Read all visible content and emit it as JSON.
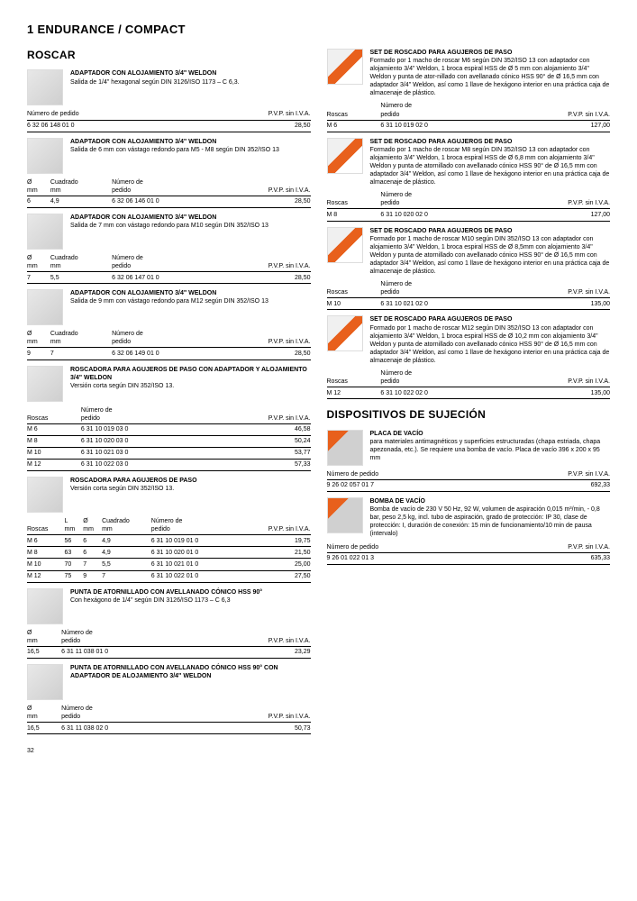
{
  "page_title": "1   ENDURANCE / COMPACT",
  "page_number": "32",
  "left": {
    "section_title": "ROSCAR",
    "products": [
      {
        "title": "ADAPTADOR CON ALOJAMIENTO 3/4\" WELDON",
        "desc": "Salida de 1/4\" hexagonal según DIN 3126/ISO 1173 – C 6,3.",
        "table": {
          "headers": [
            "Número de pedido",
            "P.V.P. sin I.V.A."
          ],
          "rows": [
            [
              "6 32 06 148 01 0",
              "28,50"
            ]
          ]
        }
      },
      {
        "title": "ADAPTADOR CON ALOJAMIENTO 3/4\" WELDON",
        "desc": "Salida de 6 mm con vástago redondo para M5 - M8 según DIN 352/ISO 13",
        "table": {
          "headers": [
            "Ø\nmm",
            "Cuadrado\nmm",
            "Número de\npedido",
            "P.V.P. sin I.V.A."
          ],
          "rows": [
            [
              "6",
              "4,9",
              "6 32 06 146 01 0",
              "28,50"
            ]
          ]
        }
      },
      {
        "title": "ADAPTADOR CON ALOJAMIENTO 3/4\" WELDON",
        "desc": "Salida de 7 mm con vástago redondo para M10 según DIN 352/ISO 13",
        "table": {
          "headers": [
            "Ø\nmm",
            "Cuadrado\nmm",
            "Número de\npedido",
            "P.V.P. sin I.V.A."
          ],
          "rows": [
            [
              "7",
              "5,5",
              "6 32 06 147 01 0",
              "28,50"
            ]
          ]
        }
      },
      {
        "title": "ADAPTADOR CON ALOJAMIENTO 3/4\" WELDON",
        "desc": "Salida de 9 mm con vástago redondo para M12 según DIN 352/ISO 13",
        "table": {
          "headers": [
            "Ø\nmm",
            "Cuadrado\nmm",
            "Número de\npedido",
            "P.V.P. sin I.V.A."
          ],
          "rows": [
            [
              "9",
              "7",
              "6 32 06 149 01 0",
              "28,50"
            ]
          ]
        }
      },
      {
        "title": "ROSCADORA PARA AGUJEROS DE PASO CON ADAPTADOR Y ALOJAMIENTO 3/4\" WELDON",
        "desc": "Versión corta según DIN 352/ISO 13.",
        "table": {
          "headers": [
            "Roscas",
            "Número de\npedido",
            "P.V.P. sin I.V.A."
          ],
          "rows": [
            [
              "M 6",
              "6 31 10 019 03 0",
              "46,58"
            ],
            [
              "M 8",
              "6 31 10 020 03 0",
              "50,24"
            ],
            [
              "M 10",
              "6 31 10 021 03 0",
              "53,77"
            ],
            [
              "M 12",
              "6 31 10 022 03 0",
              "57,33"
            ]
          ]
        }
      },
      {
        "title": "ROSCADORA PARA AGUJEROS DE PASO",
        "desc": "Versión corta según DIN 352/ISO 13.",
        "table": {
          "headers": [
            "Roscas",
            "L\nmm",
            "Ø\nmm",
            "Cuadrado\nmm",
            "Número de\npedido",
            "P.V.P. sin I.V.A."
          ],
          "rows": [
            [
              "M 6",
              "56",
              "6",
              "4,9",
              "6 31 10 019 01 0",
              "19,75"
            ],
            [
              "M 8",
              "63",
              "6",
              "4,9",
              "6 31 10 020 01 0",
              "21,50"
            ],
            [
              "M 10",
              "70",
              "7",
              "5,5",
              "6 31 10 021 01 0",
              "25,00"
            ],
            [
              "M 12",
              "75",
              "9",
              "7",
              "6 31 10 022 01 0",
              "27,50"
            ]
          ]
        }
      },
      {
        "title": "PUNTA DE ATORNILLADO CON AVELLANADO CÓNICO HSS 90°",
        "desc": "Con hexágono de 1/4\" según DIN 3126/ISO 1173 – C 6,3",
        "table": {
          "headers": [
            "Ø\nmm",
            "Número de\npedido",
            "P.V.P. sin I.V.A."
          ],
          "rows": [
            [
              "16,5",
              "6 31 11 038 01 0",
              "23,29"
            ]
          ]
        }
      },
      {
        "title": "PUNTA DE ATORNILLADO CON AVELLANADO CÓNICO HSS 90° CON ADAPTADOR DE ALOJAMIENTO 3/4\" WELDON",
        "desc": "",
        "table": {
          "headers": [
            "Ø\nmm",
            "Número de\npedido",
            "P.V.P. sin I.V.A."
          ],
          "rows": [
            [
              "16,5",
              "6 31 11 038 02 0",
              "50,73"
            ]
          ]
        }
      }
    ]
  },
  "right": {
    "products": [
      {
        "title": "SET DE ROSCADO PARA AGUJEROS DE PASO",
        "desc": "Formado por 1 macho de roscar M6 según DIN 352/ISO 13 con adaptador con alojamiento 3/4\" Weldon, 1 broca espiral HSS de Ø 5 mm con alojamiento 3/4\" Weldon y punta de ator-nillado con avellanado cónico HSS 90° de Ø 16,5 mm con adaptador 3/4\" Weldon, así como 1 llave de hexágono interior en una práctica caja de almacenaje de plástico.",
        "thumb": "orange",
        "table": {
          "headers": [
            "Roscas",
            "Número de\npedido",
            "P.V.P. sin I.V.A."
          ],
          "rows": [
            [
              "M 6",
              "6 31 10 019 02 0",
              "127,00"
            ]
          ]
        }
      },
      {
        "title": "SET DE ROSCADO PARA AGUJEROS DE PASO",
        "desc": "Formado por 1 macho de roscar M8 según DIN 352/ISO 13 con adaptador con alojamiento 3/4\" Weldon, 1 broca espiral HSS de Ø 6,8 mm con alojamiento 3/4\" Weldon y punta de atornillado con avellanado cónico HSS 90° de Ø 16,5 mm con adaptador 3/4\" Weldon, así como 1 llave de hexágono interior en una práctica caja de almacenaje de plástico.",
        "thumb": "orange",
        "table": {
          "headers": [
            "Roscas",
            "Número de\npedido",
            "P.V.P. sin I.V.A."
          ],
          "rows": [
            [
              "M 8",
              "6 31 10 020 02 0",
              "127,00"
            ]
          ]
        }
      },
      {
        "title": "SET DE ROSCADO PARA AGUJEROS DE PASO",
        "desc": "Formado por 1 macho de roscar M10 según DIN 352/ISO 13 con adaptador con alojamiento 3/4\" Weldon, 1 broca espiral HSS de Ø 8,5mm con alojamiento 3/4\" Weldon y punta de atornillado con avellanado cónico HSS 90° de Ø 16,5 mm con adaptador 3/4\" Weldon, así como 1 llave de hexágono interior en una práctica caja de almacenaje de plástico.",
        "thumb": "orange",
        "table": {
          "headers": [
            "Roscas",
            "Número de\npedido",
            "P.V.P. sin I.V.A."
          ],
          "rows": [
            [
              "M 10",
              "6 31 10 021 02 0",
              "135,00"
            ]
          ]
        }
      },
      {
        "title": "SET DE ROSCADO PARA AGUJEROS DE PASO",
        "desc": "Formado por 1 macho de roscar M12 según DIN 352/ISO 13 con adaptador con alojamiento 3/4\" Weldon, 1 broca espiral HSS de Ø 10,2 mm con alojamiento 3/4\" Weldon y punta de atornillado con avellanado cónico HSS 90° de Ø 16,5 mm con adaptador 3/4\" Weldon, así como 1 llave de hexágono interior en una práctica caja de almacenaje de plástico.",
        "thumb": "orange",
        "table": {
          "headers": [
            "Roscas",
            "Número de\npedido",
            "P.V.P. sin I.V.A."
          ],
          "rows": [
            [
              "M 12",
              "6 31 10 022 02 0",
              "135,00"
            ]
          ]
        }
      }
    ],
    "section2_title": "DISPOSITIVOS DE SUJECIÓN",
    "products2": [
      {
        "title": "PLACA DE VACÍO",
        "desc": "para materiales antimagnéticos y superficies estructuradas (chapa estriada, chapa apezonada, etc.). Se requiere una bomba de vacío.\nPlaca de vacío 396 x 200 x 95 mm",
        "thumb": "orange2",
        "table": {
          "headers": [
            "Número de pedido",
            "P.V.P. sin I.V.A."
          ],
          "rows": [
            [
              "9 26 02 057 01 7",
              "692,33"
            ]
          ]
        }
      },
      {
        "title": "BOMBA DE VACÍO",
        "desc": "Bomba de vacío de 230 V 50 Hz, 92 W, volumen de aspiración 0,015 m³/min, - 0,8 bar, peso 2,5 kg, incl. tubo de aspiración, grado de protección: IP 30, clase de protección: I, duración de conexión: 15 min de funcionamiento/10 min de pausa (intervalo)",
        "thumb": "orange2",
        "table": {
          "headers": [
            "Número de pedido",
            "P.V.P. sin I.V.A."
          ],
          "rows": [
            [
              "9 26 01 022 01 3",
              "635,33"
            ]
          ]
        }
      }
    ]
  }
}
